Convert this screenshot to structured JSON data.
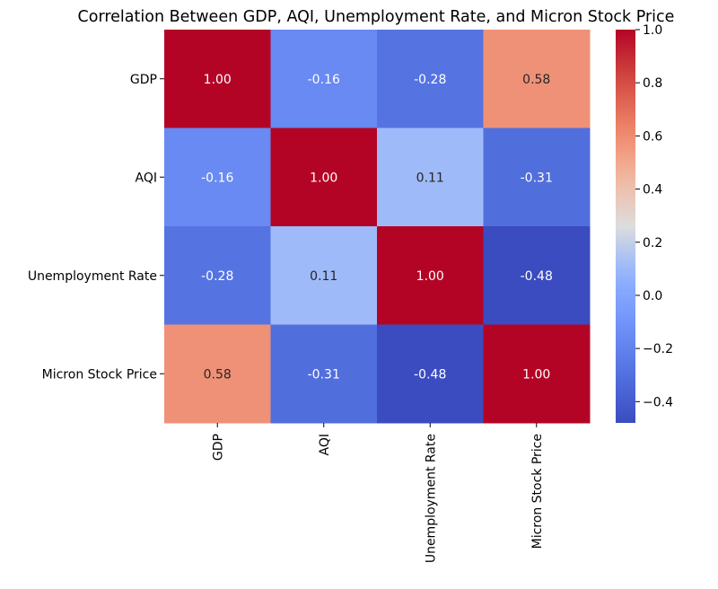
{
  "chart_data": {
    "type": "heatmap",
    "title": "Correlation Between GDP, AQI, Unemployment Rate, and Micron Stock Price",
    "xlabel": "",
    "ylabel": "",
    "categories": [
      "GDP",
      "AQI",
      "Unemployment Rate",
      "Micron Stock Price"
    ],
    "matrix": [
      [
        1.0,
        -0.16,
        -0.28,
        0.58
      ],
      [
        -0.16,
        1.0,
        0.11,
        -0.31
      ],
      [
        -0.28,
        0.11,
        1.0,
        -0.48
      ],
      [
        0.58,
        -0.31,
        -0.48,
        1.0
      ]
    ],
    "annotations": [
      [
        "1.00",
        "-0.16",
        "-0.28",
        "0.58"
      ],
      [
        "-0.16",
        "1.00",
        "0.11",
        "-0.31"
      ],
      [
        "-0.28",
        "0.11",
        "1.00",
        "-0.48"
      ],
      [
        "0.58",
        "-0.31",
        "-0.48",
        "1.00"
      ]
    ],
    "colormap": "coolwarm",
    "colorbar": {
      "range": [
        -0.48,
        1.0
      ],
      "ticks": [
        1.0,
        0.8,
        0.6,
        0.4,
        0.2,
        0.0,
        -0.2,
        -0.4
      ],
      "tick_labels": [
        "1.0",
        "0.8",
        "0.6",
        "0.4",
        "0.2",
        "0.0",
        "−0.2",
        "−0.4"
      ]
    },
    "grid": false
  }
}
